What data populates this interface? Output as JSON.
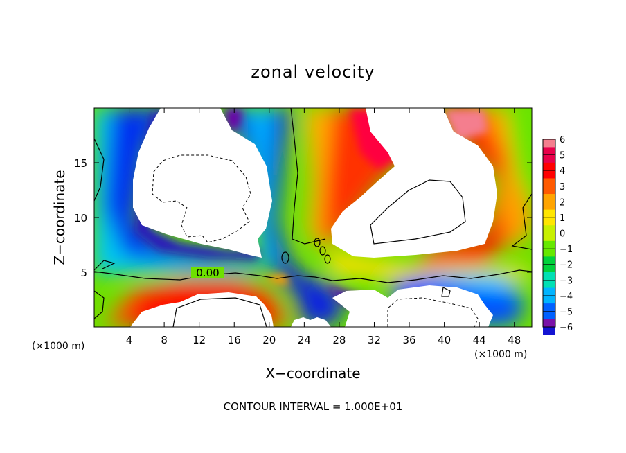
{
  "chart_data": {
    "type": "heatmap",
    "title": "zonal velocity",
    "xlabel": "X−coordinate",
    "ylabel": "Z−coordinate",
    "x_unit_label": "(×1000 m)",
    "z_unit_label": "(×1000 m)",
    "footer": "CONTOUR INTERVAL = 1.000E+01",
    "contour_label": "0.00",
    "xlim": [
      0,
      50
    ],
    "ylim": [
      0,
      20
    ],
    "x_ticks": [
      "4",
      "8",
      "12",
      "16",
      "20",
      "24",
      "28",
      "32",
      "36",
      "40",
      "44",
      "48"
    ],
    "x_tick_values": [
      4,
      8,
      12,
      16,
      20,
      24,
      28,
      32,
      36,
      40,
      44,
      48
    ],
    "y_ticks": [
      "5",
      "10",
      "15"
    ],
    "y_tick_values": [
      5,
      10,
      15
    ],
    "colorbar": {
      "labels": [
        "6",
        "5",
        "4",
        "3",
        "2",
        "1",
        "0",
        "−1",
        "−2",
        "−3",
        "−4",
        "−5",
        "−6"
      ],
      "colors": [
        "#e8004a",
        "#ff0000",
        "#ff5a00",
        "#ffa400",
        "#ffe600",
        "#c8f000",
        "#66e800",
        "#00d23c",
        "#00e0b4",
        "#00b4ff",
        "#0060ff",
        "#1414d2",
        "#6a00a8"
      ],
      "top_color": "#f47e8e",
      "bottom_color": "#7a12a8",
      "range": [
        -6,
        6
      ]
    },
    "regions": [
      {
        "name": "upper-left negative core (values below -6)",
        "fill": "none",
        "x_range": [
          5,
          18
        ],
        "z_range": [
          7,
          20
        ]
      },
      {
        "name": "upper-right positive core (values above 6)",
        "fill": "none",
        "x_range": [
          27,
          42
        ],
        "z_range": [
          7,
          20
        ]
      },
      {
        "name": "lower-left positive core",
        "fill": "none",
        "x_range": [
          7,
          19
        ],
        "z_range": [
          0,
          3
        ]
      },
      {
        "name": "lower-right negative core",
        "fill": "none",
        "x_range": [
          27,
          45
        ],
        "z_range": [
          0,
          3.5
        ]
      }
    ],
    "grid": false,
    "legend": "right (colorbar)"
  }
}
